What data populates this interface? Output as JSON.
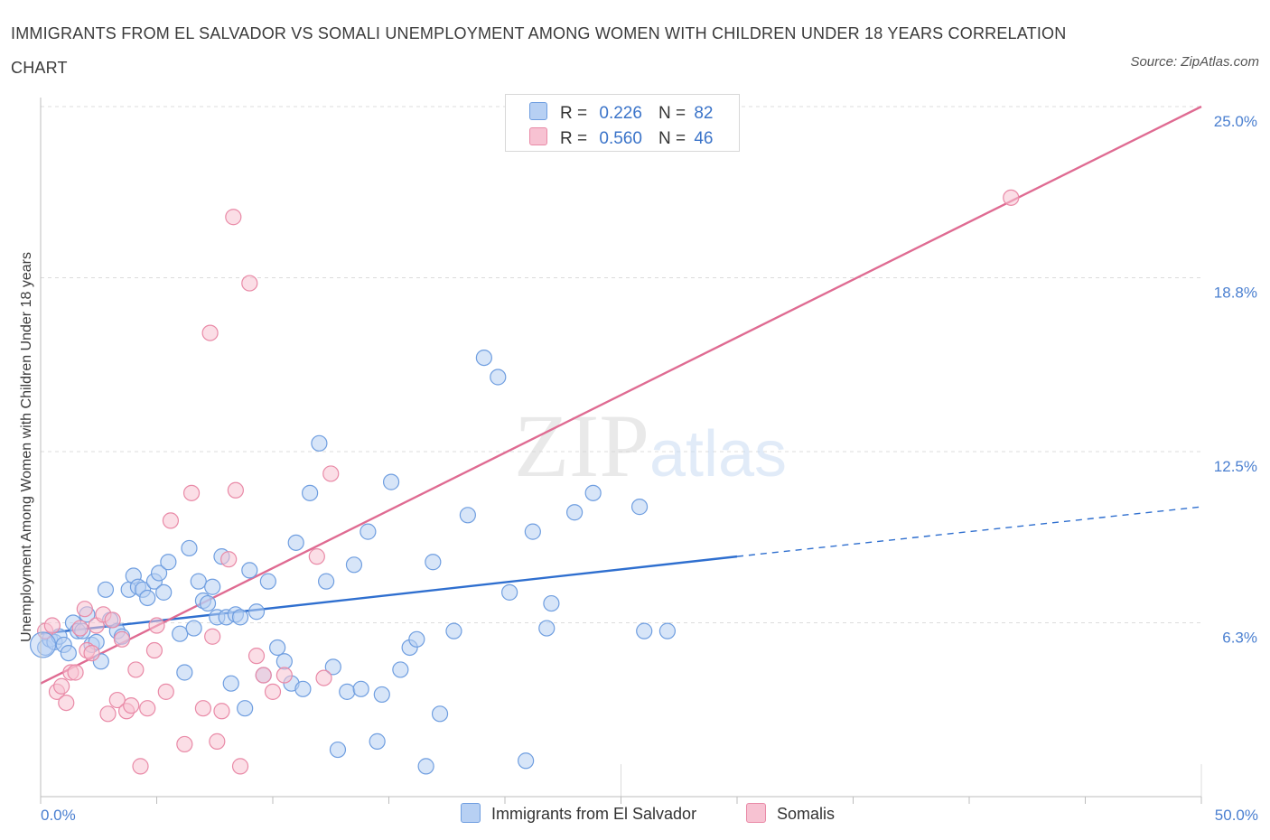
{
  "title": "IMMIGRANTS FROM EL SALVADOR VS SOMALI UNEMPLOYMENT AMONG WOMEN WITH CHILDREN UNDER 18 YEARS CORRELATION CHART",
  "source": "Source: ZipAtlas.com",
  "colors": {
    "blue_fill": "#b7d0f3",
    "blue_stroke": "#6f9ee0",
    "blue_line": "#2f6fcf",
    "pink_fill": "#f7c2d2",
    "pink_stroke": "#e98aa7",
    "pink_line": "#df6b92",
    "grid": "#dcdcdc",
    "tick_text": "#4a7fd0"
  },
  "legend": {
    "r_label": "R =",
    "n_label": "N =",
    "series": [
      {
        "r": "0.226",
        "n": "82"
      },
      {
        "r": "0.560",
        "n": "46"
      }
    ]
  },
  "chart_data": {
    "type": "scatter",
    "xlabel": "",
    "ylabel": "Unemployment Among Women with Children Under 18 years",
    "x_tick_labels": [
      "0.0%",
      "50.0%"
    ],
    "y_tick_labels": [
      "6.3%",
      "12.5%",
      "18.8%",
      "25.0%"
    ],
    "y_ticks": [
      6.3,
      12.5,
      18.8,
      25.0
    ],
    "xlim": [
      0,
      50
    ],
    "ylim": [
      0,
      25
    ],
    "watermark": "ZIPatlas",
    "series": [
      {
        "name": "Immigrants from El Salvador",
        "color": "#6f9ee0",
        "trend": {
          "x": [
            0,
            30
          ],
          "y": [
            5.9,
            8.7
          ],
          "dashed_to": [
            50,
            10.5
          ]
        },
        "points": [
          [
            0.2,
            5.4
          ],
          [
            0.4,
            5.7
          ],
          [
            0.6,
            5.6
          ],
          [
            0.8,
            5.8
          ],
          [
            1.0,
            5.5
          ],
          [
            1.2,
            5.2
          ],
          [
            1.4,
            6.3
          ],
          [
            1.6,
            6.0
          ],
          [
            1.8,
            6.0
          ],
          [
            2.0,
            6.6
          ],
          [
            2.2,
            5.5
          ],
          [
            2.4,
            5.6
          ],
          [
            2.6,
            4.9
          ],
          [
            2.8,
            7.5
          ],
          [
            3.0,
            6.4
          ],
          [
            3.3,
            6.0
          ],
          [
            3.5,
            5.8
          ],
          [
            3.8,
            7.5
          ],
          [
            4.0,
            8.0
          ],
          [
            4.2,
            7.6
          ],
          [
            4.4,
            7.5
          ],
          [
            4.6,
            7.2
          ],
          [
            4.9,
            7.8
          ],
          [
            5.1,
            8.1
          ],
          [
            5.3,
            7.4
          ],
          [
            5.5,
            8.5
          ],
          [
            6.0,
            5.9
          ],
          [
            6.2,
            4.5
          ],
          [
            6.4,
            9.0
          ],
          [
            6.6,
            6.1
          ],
          [
            6.8,
            7.8
          ],
          [
            7.0,
            7.1
          ],
          [
            7.2,
            7.0
          ],
          [
            7.4,
            7.6
          ],
          [
            7.6,
            6.5
          ],
          [
            7.8,
            8.7
          ],
          [
            8.0,
            6.5
          ],
          [
            8.2,
            4.1
          ],
          [
            8.4,
            6.6
          ],
          [
            8.6,
            6.5
          ],
          [
            8.8,
            3.2
          ],
          [
            9.0,
            8.2
          ],
          [
            9.3,
            6.7
          ],
          [
            9.6,
            4.4
          ],
          [
            9.8,
            7.8
          ],
          [
            10.2,
            5.4
          ],
          [
            10.5,
            4.9
          ],
          [
            10.8,
            4.1
          ],
          [
            11.0,
            9.2
          ],
          [
            11.3,
            3.9
          ],
          [
            11.6,
            11.0
          ],
          [
            12.0,
            12.8
          ],
          [
            12.3,
            7.8
          ],
          [
            12.6,
            4.7
          ],
          [
            12.8,
            1.7
          ],
          [
            13.2,
            3.8
          ],
          [
            13.5,
            8.4
          ],
          [
            13.8,
            3.9
          ],
          [
            14.1,
            9.6
          ],
          [
            14.5,
            2.0
          ],
          [
            14.7,
            3.7
          ],
          [
            15.1,
            11.4
          ],
          [
            15.5,
            4.6
          ],
          [
            15.9,
            5.4
          ],
          [
            16.2,
            5.7
          ],
          [
            16.6,
            1.1
          ],
          [
            16.9,
            8.5
          ],
          [
            17.2,
            3.0
          ],
          [
            17.8,
            6.0
          ],
          [
            18.4,
            10.2
          ],
          [
            19.1,
            15.9
          ],
          [
            19.7,
            15.2
          ],
          [
            20.2,
            7.4
          ],
          [
            20.9,
            1.3
          ],
          [
            21.2,
            9.6
          ],
          [
            21.8,
            6.1
          ],
          [
            22.0,
            7.0
          ],
          [
            23.0,
            10.3
          ],
          [
            23.8,
            11.0
          ],
          [
            25.8,
            10.5
          ],
          [
            26.0,
            6.0
          ],
          [
            27.0,
            6.0
          ]
        ]
      },
      {
        "name": "Somalis",
        "color": "#e98aa7",
        "trend": {
          "x": [
            0,
            50
          ],
          "y": [
            4.1,
            25.0
          ]
        },
        "points": [
          [
            0.2,
            6.0
          ],
          [
            0.5,
            6.2
          ],
          [
            0.7,
            3.8
          ],
          [
            0.9,
            4.0
          ],
          [
            1.1,
            3.4
          ],
          [
            1.3,
            4.5
          ],
          [
            1.5,
            4.5
          ],
          [
            1.7,
            6.1
          ],
          [
            1.9,
            6.8
          ],
          [
            2.0,
            5.3
          ],
          [
            2.2,
            5.2
          ],
          [
            2.4,
            6.2
          ],
          [
            2.7,
            6.6
          ],
          [
            2.9,
            3.0
          ],
          [
            3.1,
            6.4
          ],
          [
            3.3,
            3.5
          ],
          [
            3.5,
            5.7
          ],
          [
            3.7,
            3.1
          ],
          [
            3.9,
            3.3
          ],
          [
            4.1,
            4.6
          ],
          [
            4.3,
            1.1
          ],
          [
            4.6,
            3.2
          ],
          [
            4.9,
            5.3
          ],
          [
            5.0,
            6.2
          ],
          [
            5.4,
            3.8
          ],
          [
            5.6,
            10.0
          ],
          [
            6.2,
            1.9
          ],
          [
            6.5,
            11.0
          ],
          [
            7.0,
            3.2
          ],
          [
            7.3,
            16.8
          ],
          [
            7.4,
            5.8
          ],
          [
            7.6,
            2.0
          ],
          [
            7.8,
            3.1
          ],
          [
            8.1,
            8.6
          ],
          [
            8.3,
            21.0
          ],
          [
            8.4,
            11.1
          ],
          [
            8.6,
            1.1
          ],
          [
            9.0,
            18.6
          ],
          [
            9.3,
            5.1
          ],
          [
            9.6,
            4.4
          ],
          [
            10.0,
            3.8
          ],
          [
            10.5,
            4.4
          ],
          [
            11.9,
            8.7
          ],
          [
            12.2,
            4.3
          ],
          [
            12.5,
            11.7
          ],
          [
            41.8,
            21.7
          ]
        ]
      }
    ]
  }
}
